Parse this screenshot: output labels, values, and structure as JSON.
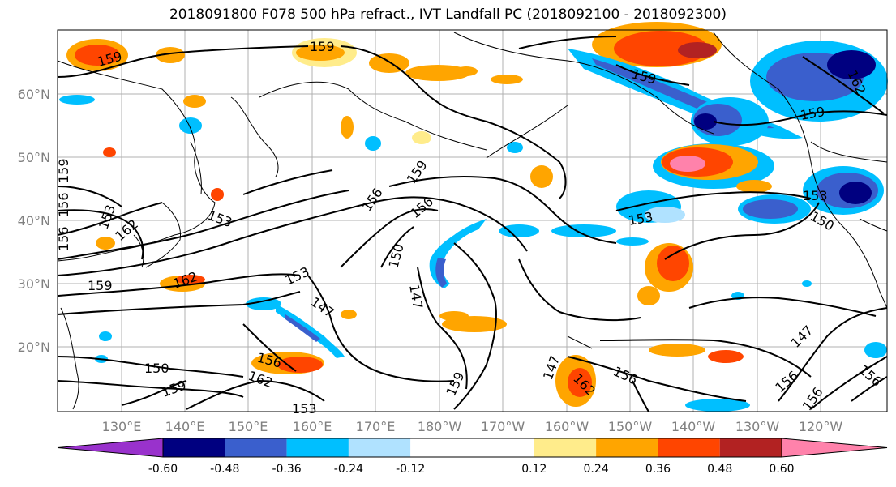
{
  "title": "2018091800 F078 500 hPa refract., IVT Landfall PC (2018092100 - 2018092300)",
  "lat_labels": [
    "60°N",
    "50°N",
    "40°N",
    "30°N",
    "20°N"
  ],
  "lon_labels": [
    "130°E",
    "140°E",
    "150°E",
    "160°E",
    "170°E",
    "180°W",
    "170°W",
    "160°W",
    "150°W",
    "140°W",
    "130°W",
    "120°W"
  ],
  "contour_labels": [
    "159",
    "159",
    "159",
    "159",
    "159",
    "159",
    "159",
    "159",
    "156",
    "156",
    "156",
    "156",
    "156",
    "156",
    "156",
    "153",
    "153",
    "153",
    "153",
    "153",
    "150",
    "150",
    "150",
    "147",
    "147",
    "147",
    "162",
    "162",
    "162",
    "162",
    "162",
    "156",
    "159",
    "153",
    "147",
    "156"
  ],
  "colorbar": {
    "colors": [
      "#9932cc",
      "#000080",
      "#3a5fcd",
      "#00bfff",
      "#b0e2ff",
      "#ffffff",
      "#ffffff",
      "#ffec8b",
      "#ffa500",
      "#ff4500",
      "#b22222",
      "#ff82ab"
    ],
    "tick_labels": [
      "-0.60",
      "-0.48",
      "-0.36",
      "-0.24",
      "-0.12",
      "0.12",
      "0.24",
      "0.36",
      "0.48",
      "0.60"
    ]
  }
}
